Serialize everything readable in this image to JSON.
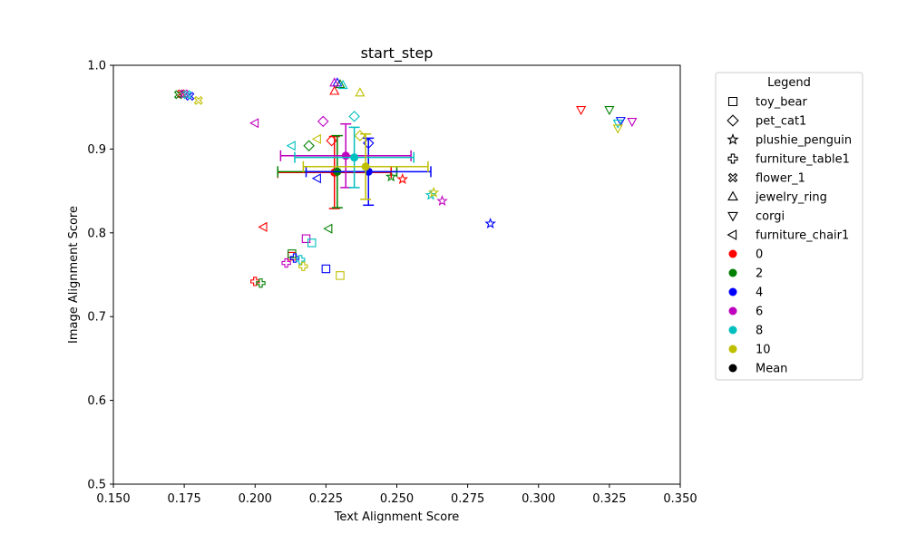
{
  "chart_data": {
    "type": "scatter",
    "title": "start_step",
    "xlabel": "Text Alignment Score",
    "ylabel": "Image Alignment Score",
    "xlim": [
      0.15,
      0.35
    ],
    "ylim": [
      0.5,
      1.0
    ],
    "xticks": [
      "0.150",
      "0.175",
      "0.200",
      "0.225",
      "0.250",
      "0.275",
      "0.300",
      "0.325",
      "0.350"
    ],
    "yticks": [
      "0.5",
      "0.6",
      "0.7",
      "0.8",
      "0.9",
      "1.0"
    ],
    "grid": false,
    "legend": {
      "title": "Legend",
      "placement": "outside-right",
      "marker_entries": [
        {
          "label": "toy_bear",
          "marker": "square"
        },
        {
          "label": "pet_cat1",
          "marker": "diamond"
        },
        {
          "label": "plushie_penguin",
          "marker": "star"
        },
        {
          "label": "furniture_table1",
          "marker": "plus"
        },
        {
          "label": "flower_1",
          "marker": "x"
        },
        {
          "label": "jewelry_ring",
          "marker": "triangle-up"
        },
        {
          "label": "corgi",
          "marker": "triangle-down"
        },
        {
          "label": "furniture_chair1",
          "marker": "triangle-left"
        }
      ],
      "color_entries": [
        {
          "label": "0",
          "color": "#ff0000"
        },
        {
          "label": "2",
          "color": "#008000"
        },
        {
          "label": "4",
          "color": "#0000ff"
        },
        {
          "label": "6",
          "color": "#bf00bf"
        },
        {
          "label": "8",
          "color": "#00bfbf"
        },
        {
          "label": "10",
          "color": "#bfbf00"
        },
        {
          "label": "Mean",
          "color": "#000000"
        }
      ]
    },
    "points": [
      {
        "subject": "toy_bear",
        "step": "0",
        "x": 0.213,
        "y": 0.772
      },
      {
        "subject": "toy_bear",
        "step": "2",
        "x": 0.213,
        "y": 0.775
      },
      {
        "subject": "toy_bear",
        "step": "4",
        "x": 0.225,
        "y": 0.757
      },
      {
        "subject": "toy_bear",
        "step": "6",
        "x": 0.218,
        "y": 0.793
      },
      {
        "subject": "toy_bear",
        "step": "8",
        "x": 0.22,
        "y": 0.788
      },
      {
        "subject": "toy_bear",
        "step": "10",
        "x": 0.23,
        "y": 0.749
      },
      {
        "subject": "pet_cat1",
        "step": "0",
        "x": 0.227,
        "y": 0.91
      },
      {
        "subject": "pet_cat1",
        "step": "2",
        "x": 0.219,
        "y": 0.904
      },
      {
        "subject": "pet_cat1",
        "step": "4",
        "x": 0.24,
        "y": 0.907
      },
      {
        "subject": "pet_cat1",
        "step": "6",
        "x": 0.224,
        "y": 0.933
      },
      {
        "subject": "pet_cat1",
        "step": "8",
        "x": 0.235,
        "y": 0.939
      },
      {
        "subject": "pet_cat1",
        "step": "10",
        "x": 0.237,
        "y": 0.916
      },
      {
        "subject": "plushie_penguin",
        "step": "0",
        "x": 0.252,
        "y": 0.864
      },
      {
        "subject": "plushie_penguin",
        "step": "2",
        "x": 0.248,
        "y": 0.867
      },
      {
        "subject": "plushie_penguin",
        "step": "4",
        "x": 0.283,
        "y": 0.811
      },
      {
        "subject": "plushie_penguin",
        "step": "6",
        "x": 0.266,
        "y": 0.838
      },
      {
        "subject": "plushie_penguin",
        "step": "8",
        "x": 0.262,
        "y": 0.845
      },
      {
        "subject": "plushie_penguin",
        "step": "10",
        "x": 0.263,
        "y": 0.848
      },
      {
        "subject": "furniture_table1",
        "step": "0",
        "x": 0.2,
        "y": 0.742
      },
      {
        "subject": "furniture_table1",
        "step": "2",
        "x": 0.202,
        "y": 0.74
      },
      {
        "subject": "furniture_table1",
        "step": "4",
        "x": 0.214,
        "y": 0.77
      },
      {
        "subject": "furniture_table1",
        "step": "6",
        "x": 0.211,
        "y": 0.764
      },
      {
        "subject": "furniture_table1",
        "step": "8",
        "x": 0.216,
        "y": 0.768
      },
      {
        "subject": "furniture_table1",
        "step": "10",
        "x": 0.217,
        "y": 0.76
      },
      {
        "subject": "flower_1",
        "step": "0",
        "x": 0.174,
        "y": 0.966
      },
      {
        "subject": "flower_1",
        "step": "2",
        "x": 0.173,
        "y": 0.965
      },
      {
        "subject": "flower_1",
        "step": "4",
        "x": 0.177,
        "y": 0.963
      },
      {
        "subject": "flower_1",
        "step": "6",
        "x": 0.175,
        "y": 0.966
      },
      {
        "subject": "flower_1",
        "step": "8",
        "x": 0.176,
        "y": 0.965
      },
      {
        "subject": "flower_1",
        "step": "10",
        "x": 0.18,
        "y": 0.958
      },
      {
        "subject": "jewelry_ring",
        "step": "0",
        "x": 0.228,
        "y": 0.969
      },
      {
        "subject": "jewelry_ring",
        "step": "2",
        "x": 0.23,
        "y": 0.977
      },
      {
        "subject": "jewelry_ring",
        "step": "4",
        "x": 0.229,
        "y": 0.979
      },
      {
        "subject": "jewelry_ring",
        "step": "6",
        "x": 0.228,
        "y": 0.979
      },
      {
        "subject": "jewelry_ring",
        "step": "8",
        "x": 0.231,
        "y": 0.976
      },
      {
        "subject": "jewelry_ring",
        "step": "10",
        "x": 0.237,
        "y": 0.967
      },
      {
        "subject": "corgi",
        "step": "0",
        "x": 0.315,
        "y": 0.947
      },
      {
        "subject": "corgi",
        "step": "2",
        "x": 0.325,
        "y": 0.947
      },
      {
        "subject": "corgi",
        "step": "4",
        "x": 0.329,
        "y": 0.934
      },
      {
        "subject": "corgi",
        "step": "6",
        "x": 0.333,
        "y": 0.933
      },
      {
        "subject": "corgi",
        "step": "8",
        "x": 0.328,
        "y": 0.931
      },
      {
        "subject": "corgi",
        "step": "10",
        "x": 0.328,
        "y": 0.925
      },
      {
        "subject": "furniture_chair1",
        "step": "0",
        "x": 0.203,
        "y": 0.807
      },
      {
        "subject": "furniture_chair1",
        "step": "2",
        "x": 0.226,
        "y": 0.805
      },
      {
        "subject": "furniture_chair1",
        "step": "4",
        "x": 0.222,
        "y": 0.865
      },
      {
        "subject": "furniture_chair1",
        "step": "6",
        "x": 0.2,
        "y": 0.931
      },
      {
        "subject": "furniture_chair1",
        "step": "8",
        "x": 0.213,
        "y": 0.904
      },
      {
        "subject": "furniture_chair1",
        "step": "10",
        "x": 0.222,
        "y": 0.912
      }
    ],
    "means": [
      {
        "step": "0",
        "x": 0.228,
        "y": 0.872,
        "xerr": 0.02,
        "yerr": 0.043
      },
      {
        "step": "2",
        "x": 0.229,
        "y": 0.873,
        "xerr": 0.021,
        "yerr": 0.043
      },
      {
        "step": "4",
        "x": 0.24,
        "y": 0.873,
        "xerr": 0.022,
        "yerr": 0.04
      },
      {
        "step": "6",
        "x": 0.232,
        "y": 0.892,
        "xerr": 0.023,
        "yerr": 0.038
      },
      {
        "step": "8",
        "x": 0.235,
        "y": 0.89,
        "xerr": 0.021,
        "yerr": 0.036
      },
      {
        "step": "10",
        "x": 0.239,
        "y": 0.879,
        "xerr": 0.022,
        "yerr": 0.039
      }
    ]
  }
}
